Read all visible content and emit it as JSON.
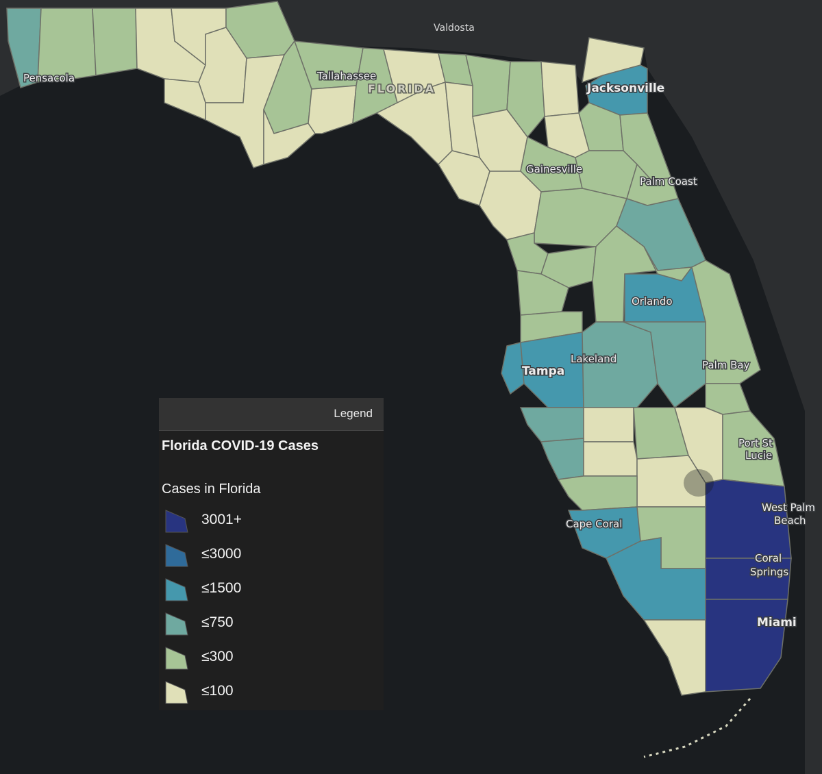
{
  "map": {
    "place_labels": [
      {
        "id": "valdosta",
        "text": "Valdosta",
        "cls": "dark"
      },
      {
        "id": "pensacola",
        "text": "Pensacola",
        "cls": ""
      },
      {
        "id": "tallahassee",
        "text": "Tallahassee",
        "cls": ""
      },
      {
        "id": "florida",
        "text": "FLORIDA",
        "cls": "state"
      },
      {
        "id": "jacksonville",
        "text": "Jacksonville",
        "cls": "major"
      },
      {
        "id": "gainesville",
        "text": "Gainesville",
        "cls": ""
      },
      {
        "id": "palm-coast",
        "text": "Palm Coast",
        "cls": ""
      },
      {
        "id": "orlando",
        "text": "Orlando",
        "cls": ""
      },
      {
        "id": "lakeland",
        "text": "Lakeland",
        "cls": ""
      },
      {
        "id": "tampa",
        "text": "Tampa",
        "cls": "major"
      },
      {
        "id": "palm-bay",
        "text": "Palm Bay",
        "cls": ""
      },
      {
        "id": "port-st-lucie-1",
        "text": "Port St",
        "cls": ""
      },
      {
        "id": "port-st-lucie-2",
        "text": "Lucie",
        "cls": ""
      },
      {
        "id": "west-palm-beach-1",
        "text": "West Palm",
        "cls": ""
      },
      {
        "id": "west-palm-beach-2",
        "text": "Beach",
        "cls": ""
      },
      {
        "id": "coral-springs-1",
        "text": "Coral",
        "cls": ""
      },
      {
        "id": "coral-springs-2",
        "text": "Springs",
        "cls": ""
      },
      {
        "id": "cape-coral",
        "text": "Cape Coral",
        "cls": ""
      },
      {
        "id": "miami",
        "text": "Miami",
        "cls": "major"
      }
    ]
  },
  "legend": {
    "header": "Legend",
    "layer_title": "Florida COVID-19 Cases",
    "field_title": "Cases in Florida",
    "classes": [
      {
        "label": "3001+",
        "color": "#283480"
      },
      {
        "label": "≤3000",
        "color": "#2f6b9a"
      },
      {
        "label": "≤1500",
        "color": "#4598ad"
      },
      {
        "label": "≤750",
        "color": "#6fa9a0"
      },
      {
        "label": "≤300",
        "color": "#a7c496"
      },
      {
        "label": "≤100",
        "color": "#e0e0b8"
      }
    ]
  }
}
